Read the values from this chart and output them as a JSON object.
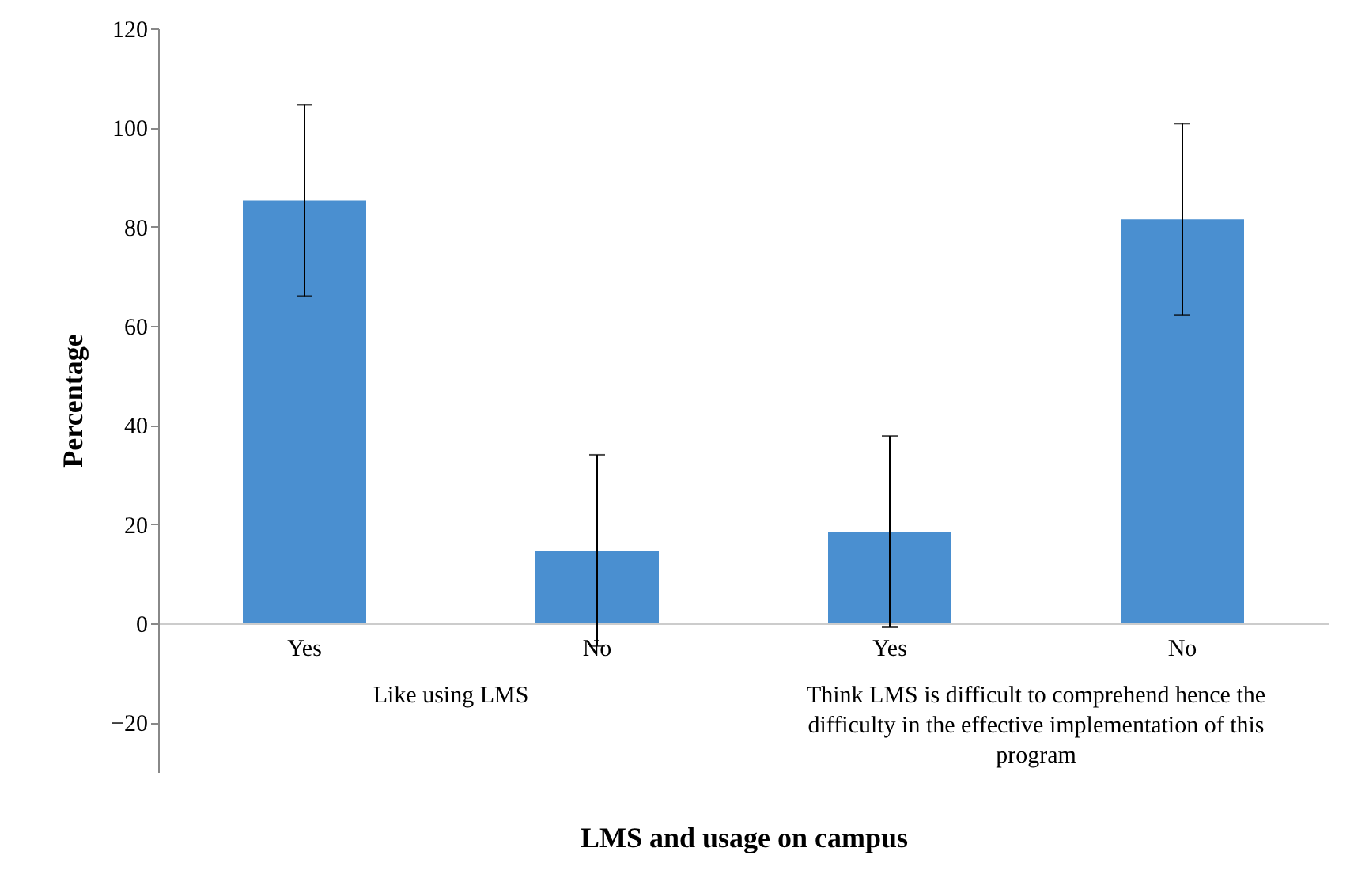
{
  "chart_data": {
    "type": "bar",
    "xlabel": "LMS and usage on campus",
    "ylabel": "Percentage",
    "categories": [
      "Yes",
      "No",
      "Yes",
      "No"
    ],
    "series": [
      {
        "color": "#4a8fd0",
        "values": [
          85.3,
          14.7,
          18.5,
          81.5
        ],
        "errors": [
          19.3,
          19.3,
          19.3,
          19.3
        ]
      }
    ],
    "ylim": [
      -30,
      120
    ],
    "yticks": [
      -20,
      0,
      20,
      40,
      60,
      80,
      100,
      120
    ],
    "grid": false,
    "annotations": [
      "Like using LMS",
      "Think LMS is difficult to comprehend hence the difficulty in the effective implementation of this program"
    ]
  }
}
